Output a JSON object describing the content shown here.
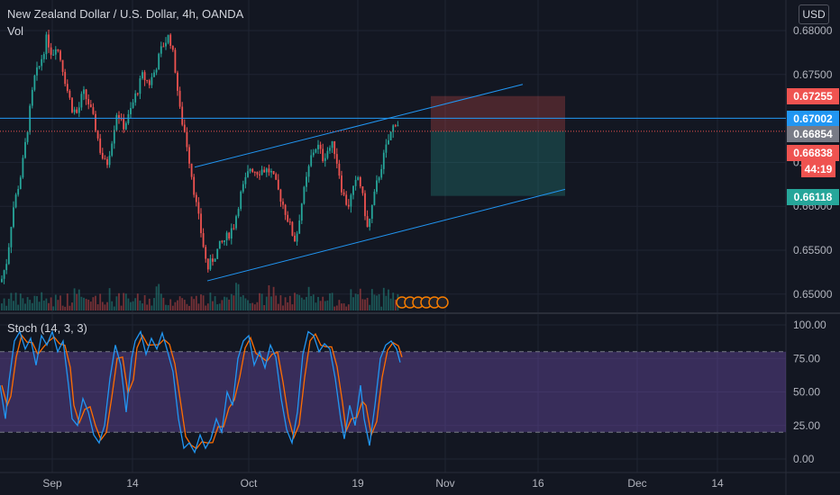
{
  "header": {
    "title": "New Zealand Dollar / U.S. Dollar, 4h, OANDA",
    "volume_label": "Vol",
    "currency_button": "USD"
  },
  "colors": {
    "background": "#131722",
    "grid": "#1f2433",
    "up": "#26a69a",
    "down": "#ef5350",
    "channel": "#2196f3",
    "stoch_k": "#2196f3",
    "stoch_d": "#ff6d00",
    "stoch_band": "#7e57c2"
  },
  "chart_data": {
    "type": "candlestick",
    "symbol": "NZDUSD",
    "timeframe": "4h",
    "source": "OANDA",
    "x_ticks": [
      "Sep",
      "14",
      "Oct",
      "19",
      "Nov",
      "16",
      "Dec",
      "14"
    ],
    "y_ticks": [
      "0.68000",
      "0.67500",
      "0.67000",
      "0.66500",
      "0.66000",
      "0.65500",
      "0.65000"
    ],
    "ylim": [
      0.6487,
      0.6818
    ],
    "price_labels": [
      {
        "text": "0.67255",
        "value": 0.67255,
        "color": "#ef5350"
      },
      {
        "text": "0.67002",
        "value": 0.67002,
        "color": "#2196f3"
      },
      {
        "text": "0.66854",
        "value": 0.66854,
        "color": "#787b86"
      },
      {
        "text": "0.66838",
        "value": 0.66838,
        "color": "#ef5350"
      },
      {
        "text": "44:19",
        "value": 0.6671,
        "color": "#ef5350"
      },
      {
        "text": "0.66118",
        "value": 0.66118,
        "color": "#26a69a"
      }
    ],
    "horizontal_line": 0.67002,
    "last_price": 0.66854,
    "price_path": [
      [
        0,
        0.651
      ],
      [
        8,
        0.654
      ],
      [
        14,
        0.6595
      ],
      [
        24,
        0.664
      ],
      [
        32,
        0.67
      ],
      [
        38,
        0.6745
      ],
      [
        44,
        0.676
      ],
      [
        52,
        0.6792
      ],
      [
        58,
        0.6772
      ],
      [
        62,
        0.6785
      ],
      [
        68,
        0.6765
      ],
      [
        74,
        0.6735
      ],
      [
        80,
        0.6712
      ],
      [
        86,
        0.6705
      ],
      [
        92,
        0.673
      ],
      [
        98,
        0.6718
      ],
      [
        106,
        0.669
      ],
      [
        112,
        0.666
      ],
      [
        118,
        0.6645
      ],
      [
        124,
        0.6675
      ],
      [
        130,
        0.671
      ],
      [
        136,
        0.669
      ],
      [
        142,
        0.67
      ],
      [
        150,
        0.6725
      ],
      [
        158,
        0.6748
      ],
      [
        166,
        0.674
      ],
      [
        172,
        0.6755
      ],
      [
        180,
        0.6782
      ],
      [
        188,
        0.6795
      ],
      [
        194,
        0.676
      ],
      [
        200,
        0.6705
      ],
      [
        206,
        0.668
      ],
      [
        212,
        0.664
      ],
      [
        218,
        0.66
      ],
      [
        224,
        0.6565
      ],
      [
        230,
        0.6528
      ],
      [
        236,
        0.654
      ],
      [
        244,
        0.6555
      ],
      [
        252,
        0.6565
      ],
      [
        260,
        0.658
      ],
      [
        266,
        0.661
      ],
      [
        272,
        0.6628
      ],
      [
        278,
        0.6645
      ],
      [
        284,
        0.664
      ],
      [
        292,
        0.6642
      ],
      [
        300,
        0.664
      ],
      [
        306,
        0.6625
      ],
      [
        312,
        0.6608
      ],
      [
        318,
        0.659
      ],
      [
        324,
        0.657
      ],
      [
        328,
        0.656
      ],
      [
        334,
        0.66
      ],
      [
        340,
        0.663
      ],
      [
        346,
        0.666
      ],
      [
        352,
        0.667
      ],
      [
        358,
        0.6655
      ],
      [
        364,
        0.6665
      ],
      [
        370,
        0.667
      ],
      [
        376,
        0.664
      ],
      [
        380,
        0.6615
      ],
      [
        386,
        0.66
      ],
      [
        392,
        0.6618
      ],
      [
        398,
        0.6635
      ],
      [
        404,
        0.66
      ],
      [
        408,
        0.6572
      ],
      [
        412,
        0.6595
      ],
      [
        418,
        0.6625
      ],
      [
        424,
        0.665
      ],
      [
        430,
        0.6672
      ],
      [
        436,
        0.669
      ],
      [
        440,
        0.6699
      ],
      [
        444,
        0.6685
      ]
    ],
    "channel_upper": [
      [
        216,
        0.66445
      ],
      [
        580,
        0.67388
      ]
    ],
    "channel_lower": [
      [
        230,
        0.65151
      ],
      [
        627,
        0.66193
      ]
    ],
    "position": {
      "x_start": 478,
      "x_end": 627,
      "stop_loss": 0.67255,
      "entry": 0.66854,
      "take_profit": 0.66118
    },
    "stochastic": {
      "label": "Stoch (14, 3, 3)",
      "y_ticks": [
        "100.00",
        "75.00",
        "50.00",
        "25.00",
        "0.00"
      ],
      "upper_band": 80,
      "lower_band": 20,
      "k_path": [
        [
          0,
          55
        ],
        [
          6,
          30
        ],
        [
          10,
          58
        ],
        [
          16,
          88
        ],
        [
          22,
          95
        ],
        [
          28,
          82
        ],
        [
          34,
          90
        ],
        [
          40,
          70
        ],
        [
          46,
          92
        ],
        [
          52,
          85
        ],
        [
          58,
          95
        ],
        [
          64,
          80
        ],
        [
          70,
          88
        ],
        [
          76,
          55
        ],
        [
          80,
          30
        ],
        [
          86,
          25
        ],
        [
          92,
          45
        ],
        [
          98,
          35
        ],
        [
          104,
          18
        ],
        [
          110,
          12
        ],
        [
          116,
          25
        ],
        [
          122,
          60
        ],
        [
          128,
          85
        ],
        [
          134,
          70
        ],
        [
          140,
          35
        ],
        [
          146,
          75
        ],
        [
          150,
          88
        ],
        [
          156,
          95
        ],
        [
          162,
          78
        ],
        [
          168,
          90
        ],
        [
          174,
          82
        ],
        [
          180,
          94
        ],
        [
          186,
          80
        ],
        [
          192,
          65
        ],
        [
          198,
          30
        ],
        [
          204,
          8
        ],
        [
          210,
          12
        ],
        [
          216,
          5
        ],
        [
          222,
          18
        ],
        [
          228,
          8
        ],
        [
          234,
          15
        ],
        [
          240,
          30
        ],
        [
          246,
          20
        ],
        [
          252,
          50
        ],
        [
          258,
          40
        ],
        [
          264,
          75
        ],
        [
          270,
          88
        ],
        [
          276,
          92
        ],
        [
          282,
          70
        ],
        [
          288,
          80
        ],
        [
          294,
          68
        ],
        [
          300,
          85
        ],
        [
          306,
          76
        ],
        [
          312,
          45
        ],
        [
          318,
          22
        ],
        [
          324,
          12
        ],
        [
          330,
          35
        ],
        [
          336,
          78
        ],
        [
          342,
          95
        ],
        [
          348,
          92
        ],
        [
          354,
          80
        ],
        [
          360,
          86
        ],
        [
          366,
          82
        ],
        [
          372,
          60
        ],
        [
          378,
          30
        ],
        [
          382,
          15
        ],
        [
          388,
          40
        ],
        [
          394,
          25
        ],
        [
          400,
          55
        ],
        [
          404,
          30
        ],
        [
          410,
          10
        ],
        [
          416,
          40
        ],
        [
          422,
          75
        ],
        [
          428,
          85
        ],
        [
          434,
          88
        ],
        [
          440,
          82
        ],
        [
          444,
          72
        ]
      ]
    }
  }
}
